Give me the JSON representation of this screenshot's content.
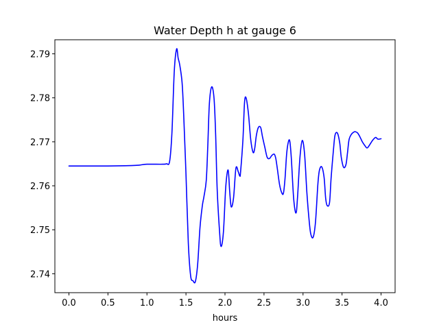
{
  "chart_data": {
    "type": "line",
    "title": "Water Depth h at gauge 6",
    "xlabel": "hours",
    "ylabel": "",
    "xlim": [
      -0.18,
      4.18
    ],
    "ylim": [
      2.7357,
      2.7932
    ],
    "xticks": [
      0.0,
      0.5,
      1.0,
      1.5,
      2.0,
      2.5,
      3.0,
      3.5,
      4.0
    ],
    "xtick_labels": [
      "0.0",
      "0.5",
      "1.0",
      "1.5",
      "2.0",
      "2.5",
      "3.0",
      "3.5",
      "4.0"
    ],
    "yticks": [
      2.74,
      2.75,
      2.76,
      2.77,
      2.78,
      2.79
    ],
    "ytick_labels": [
      "2.74",
      "2.75",
      "2.76",
      "2.77",
      "2.78",
      "2.79"
    ],
    "grid": false,
    "line_color": "#0000ff",
    "series": [
      {
        "x": [
          0.0,
          0.5,
          0.8,
          0.9,
          1.0,
          1.2,
          1.25,
          1.29,
          1.32,
          1.35,
          1.38,
          1.4,
          1.42,
          1.45,
          1.47,
          1.5,
          1.53,
          1.56,
          1.59,
          1.62,
          1.65,
          1.68,
          1.71,
          1.73,
          1.76,
          1.78,
          1.8,
          1.83,
          1.86,
          1.88,
          1.9,
          1.93,
          1.95,
          1.98,
          2.01,
          2.04,
          2.06,
          2.08,
          2.11,
          2.14,
          2.17,
          2.19,
          2.2,
          2.23,
          2.25,
          2.27,
          2.3,
          2.33,
          2.36,
          2.38,
          2.4,
          2.42,
          2.44,
          2.46,
          2.48,
          2.51,
          2.54,
          2.57,
          2.6,
          2.63,
          2.65,
          2.67,
          2.7,
          2.73,
          2.75,
          2.77,
          2.79,
          2.81,
          2.83,
          2.85,
          2.88,
          2.91,
          2.93,
          2.96,
          2.99,
          3.02,
          3.05,
          3.08,
          3.1,
          3.13,
          3.16,
          3.19,
          3.21,
          3.24,
          3.27,
          3.29,
          3.31,
          3.34,
          3.36,
          3.39,
          3.41,
          3.44,
          3.47,
          3.49,
          3.52,
          3.55,
          3.57,
          3.59,
          3.62,
          3.65,
          3.67,
          3.7,
          3.73,
          3.76,
          3.79,
          3.82,
          3.85,
          3.89,
          3.93,
          3.96,
          4.0
        ],
        "y": [
          2.7645,
          2.7645,
          2.7646,
          2.7647,
          2.7649,
          2.7649,
          2.765,
          2.7655,
          2.772,
          2.786,
          2.7911,
          2.789,
          2.7875,
          2.7835,
          2.7765,
          2.7627,
          2.747,
          2.7395,
          2.7384,
          2.7382,
          2.7422,
          2.7506,
          2.7555,
          2.7575,
          2.7612,
          2.7692,
          2.7787,
          2.7825,
          2.7798,
          2.7718,
          2.7592,
          2.7497,
          2.7462,
          2.7495,
          2.7598,
          2.7636,
          2.7588,
          2.7552,
          2.7573,
          2.764,
          2.7632,
          2.7622,
          2.7632,
          2.7705,
          2.7788,
          2.78,
          2.7765,
          2.7705,
          2.7676,
          2.7684,
          2.7712,
          2.7729,
          2.7735,
          2.7731,
          2.7712,
          2.7688,
          2.7665,
          2.7662,
          2.7669,
          2.7672,
          2.7663,
          2.764,
          2.7602,
          2.7583,
          2.7584,
          2.7618,
          2.7672,
          2.7698,
          2.7702,
          2.7663,
          2.7571,
          2.7538,
          2.7575,
          2.7663,
          2.7703,
          2.7672,
          2.7583,
          2.7518,
          2.749,
          2.7483,
          2.7518,
          2.7603,
          2.7635,
          2.7643,
          2.7619,
          2.7572,
          2.7555,
          2.7562,
          2.7618,
          2.7682,
          2.7715,
          2.772,
          2.7698,
          2.7665,
          2.7642,
          2.7648,
          2.7675,
          2.7705,
          2.7717,
          2.7722,
          2.7723,
          2.772,
          2.7711,
          2.77,
          2.7692,
          2.7686,
          2.7692,
          2.7703,
          2.771,
          2.7706,
          2.7707
        ]
      }
    ]
  }
}
